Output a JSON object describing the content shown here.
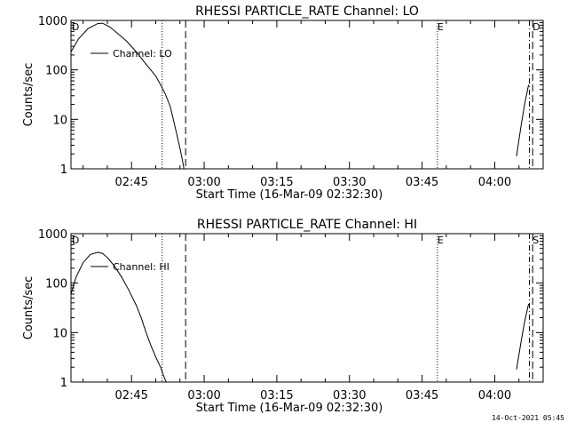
{
  "chart_data": [
    {
      "type": "line",
      "title": "RHESSI PARTICLE_RATE Channel: LO",
      "xlabel": "Start Time (16-Mar-09 02:32:30)",
      "ylabel": "Counts/sec",
      "yscale": "log",
      "ylim": [
        1,
        1000
      ],
      "xlim": [
        "02:32:30",
        "04:10:00"
      ],
      "x_ticks": [
        "02:45",
        "03:00",
        "03:15",
        "03:30",
        "03:45",
        "04:00"
      ],
      "y_ticks": [
        "1",
        "10",
        "100",
        "1000"
      ],
      "legend": {
        "position": "top-left",
        "entries": [
          "Channel: LO"
        ]
      },
      "grid": false,
      "series": [
        {
          "name": "Channel: LO",
          "segments": [
            [
              [
                "02:32:30",
                230
              ],
              [
                "02:34:00",
                420
              ],
              [
                "02:36:00",
                680
              ],
              [
                "02:38:00",
                860
              ],
              [
                "02:39:00",
                880
              ],
              [
                "02:40:30",
                740
              ],
              [
                "02:42:00",
                560
              ],
              [
                "02:44:00",
                380
              ],
              [
                "02:46:00",
                230
              ],
              [
                "02:48:00",
                130
              ],
              [
                "02:50:00",
                75
              ],
              [
                "02:51:00",
                50
              ],
              [
                "02:52:00",
                32
              ],
              [
                "02:53:00",
                18
              ],
              [
                "02:54:00",
                7
              ],
              [
                "02:55:00",
                2.6
              ],
              [
                "02:55:30",
                1.5
              ],
              [
                "02:55:50",
                1.0
              ]
            ],
            [
              [
                "04:04:30",
                1.8
              ],
              [
                "04:05:30",
                8
              ],
              [
                "04:06:15",
                22
              ],
              [
                "04:07:00",
                50
              ]
            ]
          ]
        }
      ],
      "markers": [
        {
          "time": "02:32:40",
          "label": "D",
          "style": "none"
        },
        {
          "time": "02:51:20",
          "label": "",
          "style": "dotted"
        },
        {
          "time": "02:56:10",
          "label": "",
          "style": "dashed"
        },
        {
          "time": "03:48:10",
          "label": "E",
          "style": "dotted"
        },
        {
          "time": "04:07:10",
          "label": "",
          "style": "dash-dot"
        },
        {
          "time": "04:07:50",
          "label": "D",
          "style": "dashed"
        }
      ]
    },
    {
      "type": "line",
      "title": "RHESSI PARTICLE_RATE Channel: HI",
      "xlabel": "Start Time (16-Mar-09 02:32:30)",
      "ylabel": "Counts/sec",
      "yscale": "log",
      "ylim": [
        1,
        1000
      ],
      "xlim": [
        "02:32:30",
        "04:10:00"
      ],
      "x_ticks": [
        "02:45",
        "03:00",
        "03:15",
        "03:30",
        "03:45",
        "04:00"
      ],
      "y_ticks": [
        "1",
        "10",
        "100",
        "1000"
      ],
      "legend": {
        "position": "top-left",
        "entries": [
          "Channel: HI"
        ]
      },
      "grid": false,
      "series": [
        {
          "name": "Channel: HI",
          "segments": [
            [
              [
                "02:32:30",
                60
              ],
              [
                "02:33:30",
                130
              ],
              [
                "02:35:00",
                260
              ],
              [
                "02:36:30",
                380
              ],
              [
                "02:38:00",
                420
              ],
              [
                "02:39:00",
                400
              ],
              [
                "02:40:00",
                330
              ],
              [
                "02:41:30",
                220
              ],
              [
                "02:43:00",
                130
              ],
              [
                "02:44:30",
                70
              ],
              [
                "02:46:00",
                35
              ],
              [
                "02:47:00",
                20
              ],
              [
                "02:48:00",
                10
              ],
              [
                "02:49:00",
                5.5
              ],
              [
                "02:50:00",
                3.2
              ],
              [
                "02:51:00",
                2
              ],
              [
                "02:51:40",
                1.3
              ],
              [
                "02:52:10",
                1.0
              ]
            ],
            [
              [
                "04:04:30",
                1.8
              ],
              [
                "04:05:30",
                7
              ],
              [
                "04:06:15",
                18
              ],
              [
                "04:07:00",
                38
              ]
            ]
          ]
        }
      ],
      "markers": [
        {
          "time": "02:32:40",
          "label": "D",
          "style": "none"
        },
        {
          "time": "02:51:20",
          "label": "",
          "style": "dotted"
        },
        {
          "time": "02:56:10",
          "label": "",
          "style": "dashed"
        },
        {
          "time": "03:48:10",
          "label": "E",
          "style": "dotted"
        },
        {
          "time": "04:07:10",
          "label": "",
          "style": "dash-dot"
        },
        {
          "time": "04:07:50",
          "label": "S",
          "style": "dashed"
        }
      ]
    }
  ],
  "footer": {
    "timestamp": "14-Oct-2021 05:45"
  }
}
